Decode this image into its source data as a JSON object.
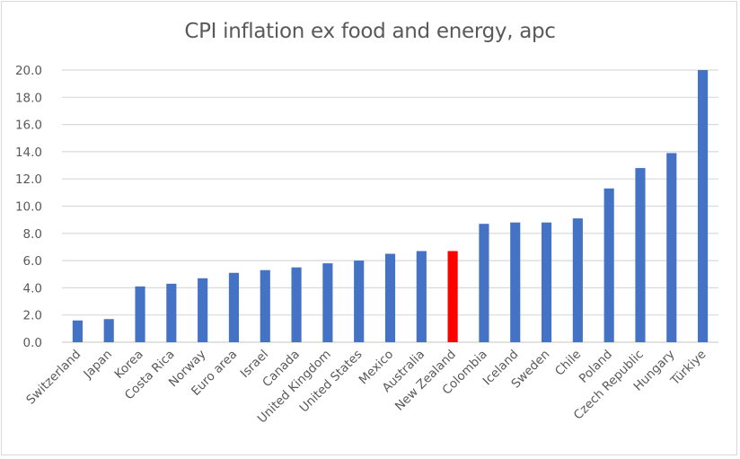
{
  "chart_data": {
    "type": "bar",
    "title": "CPI inflation ex food and energy, apc",
    "xlabel": "",
    "ylabel": "",
    "ylim": [
      0,
      20
    ],
    "yticks": [
      "0.0",
      "2.0",
      "4.0",
      "6.0",
      "8.0",
      "10.0",
      "12.0",
      "14.0",
      "16.0",
      "18.0",
      "20.0"
    ],
    "grid": true,
    "legend": "none",
    "categories": [
      "Switzerland",
      "Japan",
      "Korea",
      "Costa Rica",
      "Norway",
      "Euro area",
      "Israel",
      "Canada",
      "United Kingdom",
      "United States",
      "Mexico",
      "Australia",
      "New Zealand",
      "Colombia",
      "Iceland",
      "Sweden",
      "Chile",
      "Poland",
      "Czech Republic",
      "Hungary",
      "Türkiye"
    ],
    "values": [
      1.6,
      1.7,
      4.1,
      4.3,
      4.7,
      5.1,
      5.3,
      5.5,
      5.8,
      6.0,
      6.5,
      6.7,
      6.7,
      8.7,
      8.8,
      8.8,
      9.1,
      11.3,
      12.8,
      13.9,
      20.0
    ],
    "colors": {
      "default": "#4472C4",
      "highlight": "#FF0000",
      "gridline": "#D9D9D9",
      "text": "#595959"
    },
    "highlight_category": "New Zealand"
  }
}
